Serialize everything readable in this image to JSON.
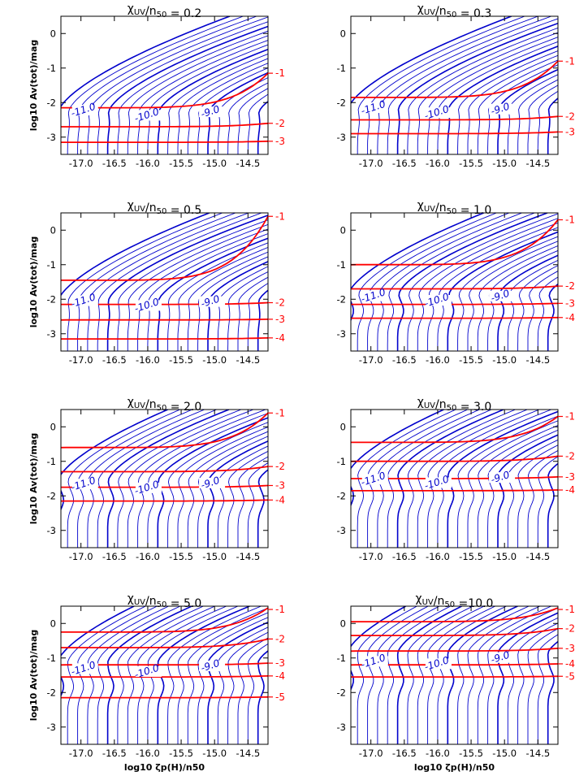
{
  "colors": {
    "contour": "#0000cc",
    "red": "#ff0000",
    "axis": "#000000"
  },
  "chart_data": [
    {
      "type": "line",
      "title_prefix": "χ",
      "title_sub": "UV",
      "title_mid": "/n",
      "title_sub2": "50",
      "title_value": " = 0.2",
      "xlabel_show": false,
      "ylabel_show": true,
      "xlim": [
        -17.3,
        -14.2
      ],
      "ylim": [
        -3.5,
        0.5
      ],
      "xticks": [
        "-17.0",
        "-16.5",
        "-16.0",
        "-15.5",
        "-15.0",
        "-14.5"
      ],
      "yticks": [
        "0",
        "-1",
        "-2",
        "-3"
      ],
      "red_curves": [
        {
          "label": "-1",
          "y_left": -2.15,
          "y_right": -1.15
        },
        {
          "label": "-2",
          "y_left": -2.7,
          "y_right": -2.6
        },
        {
          "label": "-3",
          "y_left": -3.15,
          "y_right": -3.12
        }
      ],
      "contour_labels": [
        "-11.0",
        "-10.0",
        "-9.0"
      ],
      "shift": 0.0
    },
    {
      "type": "line",
      "title_prefix": "χ",
      "title_sub": "UV",
      "title_mid": "/n",
      "title_sub2": "50",
      "title_value": " = 0.3",
      "xlabel_show": false,
      "ylabel_show": false,
      "xlim": [
        -17.3,
        -14.2
      ],
      "ylim": [
        -3.5,
        0.5
      ],
      "xticks": [
        "-17.0",
        "-16.5",
        "-16.0",
        "-15.5",
        "-15.0",
        "-14.5"
      ],
      "yticks": [
        "0",
        "-1",
        "-2",
        "-3"
      ],
      "red_curves": [
        {
          "label": "-1",
          "y_left": -1.85,
          "y_right": -0.8
        },
        {
          "label": "-2",
          "y_left": -2.5,
          "y_right": -2.4
        },
        {
          "label": "-3",
          "y_left": -2.9,
          "y_right": -2.85
        }
      ],
      "contour_labels": [
        "-11.0",
        "-10.0",
        "-9.0"
      ],
      "shift": 0.1
    },
    {
      "type": "line",
      "title_prefix": "χ",
      "title_sub": "UV",
      "title_mid": "/n",
      "title_sub2": "50",
      "title_value": " = 0.5",
      "xlabel_show": false,
      "ylabel_show": true,
      "xlim": [
        -17.3,
        -14.2
      ],
      "ylim": [
        -3.5,
        0.5
      ],
      "xticks": [
        "-17.0",
        "-16.5",
        "-16.0",
        "-15.5",
        "-15.0",
        "-14.5"
      ],
      "yticks": [
        "0",
        "-1",
        "-2",
        "-3"
      ],
      "red_curves": [
        {
          "label": "-1",
          "y_left": -1.45,
          "y_right": 0.4
        },
        {
          "label": "-2",
          "y_left": -2.15,
          "y_right": -2.1
        },
        {
          "label": "-3",
          "y_left": -2.6,
          "y_right": -2.58
        },
        {
          "label": "-4",
          "y_left": -3.15,
          "y_right": -3.12
        }
      ],
      "contour_labels": [
        "-11.0",
        "-10.0",
        "-9.0"
      ],
      "shift": 0.25
    },
    {
      "type": "line",
      "title_prefix": "χ",
      "title_sub": "UV",
      "title_mid": "/n",
      "title_sub2": "50",
      "title_value": " = 1.0",
      "xlabel_show": false,
      "ylabel_show": false,
      "xlim": [
        -17.3,
        -14.2
      ],
      "ylim": [
        -3.5,
        0.5
      ],
      "xticks": [
        "-17.0",
        "-16.5",
        "-16.0",
        "-15.5",
        "-15.0",
        "-14.5"
      ],
      "yticks": [
        "0",
        "-1",
        "-2",
        "-3"
      ],
      "red_curves": [
        {
          "label": "-1",
          "y_left": -1.0,
          "y_right": 0.3
        },
        {
          "label": "-2",
          "y_left": -1.7,
          "y_right": -1.62
        },
        {
          "label": "-3",
          "y_left": -2.15,
          "y_right": -2.12
        },
        {
          "label": "-4",
          "y_left": -2.55,
          "y_right": -2.53
        }
      ],
      "contour_labels": [
        "-11.0",
        "-10.0",
        "-9.0"
      ],
      "shift": 0.45
    },
    {
      "type": "line",
      "title_prefix": "χ",
      "title_sub": "UV",
      "title_mid": "/n",
      "title_sub2": "50",
      "title_value": " = 2.0",
      "xlabel_show": false,
      "ylabel_show": true,
      "xlim": [
        -17.3,
        -14.2
      ],
      "ylim": [
        -3.5,
        0.5
      ],
      "xticks": [
        "-17.0",
        "-16.5",
        "-16.0",
        "-15.5",
        "-15.0",
        "-14.5"
      ],
      "yticks": [
        "0",
        "-1",
        "-2",
        "-3"
      ],
      "red_curves": [
        {
          "label": "-1",
          "y_left": -0.6,
          "y_right": 0.4
        },
        {
          "label": "-2",
          "y_left": -1.3,
          "y_right": -1.15
        },
        {
          "label": "-3",
          "y_left": -1.75,
          "y_right": -1.7
        },
        {
          "label": "-4",
          "y_left": -2.15,
          "y_right": -2.12
        }
      ],
      "contour_labels": [
        "-11.0",
        "-10.0",
        "-9.0"
      ],
      "shift": 0.8
    },
    {
      "type": "line",
      "title_prefix": "χ",
      "title_sub": "UV",
      "title_mid": "/n",
      "title_sub2": "50",
      "title_value": " = 3.0",
      "xlabel_show": false,
      "ylabel_show": false,
      "xlim": [
        -17.3,
        -14.2
      ],
      "ylim": [
        -3.5,
        0.5
      ],
      "xticks": [
        "-17.0",
        "-16.5",
        "-16.0",
        "-15.5",
        "-15.0",
        "-14.5"
      ],
      "yticks": [
        "0",
        "-1",
        "-2",
        "-3"
      ],
      "red_curves": [
        {
          "label": "-1",
          "y_left": -0.45,
          "y_right": 0.3
        },
        {
          "label": "-2",
          "y_left": -1.0,
          "y_right": -0.85
        },
        {
          "label": "-3",
          "y_left": -1.5,
          "y_right": -1.45
        },
        {
          "label": "-4",
          "y_left": -1.85,
          "y_right": -1.83
        }
      ],
      "contour_labels": [
        "-11.0",
        "-10.0",
        "-9.0"
      ],
      "shift": 1.0
    },
    {
      "type": "line",
      "title_prefix": "χ",
      "title_sub": "UV",
      "title_mid": "/n",
      "title_sub2": "50",
      "title_value": " = 5.0",
      "xlabel": "log10 ζp(H)/n50",
      "xlabel_show": true,
      "ylabel_show": true,
      "xlim": [
        -17.3,
        -14.2
      ],
      "ylim": [
        -3.5,
        0.5
      ],
      "xticks": [
        "-17.0",
        "-16.5",
        "-16.0",
        "-15.5",
        "-15.0",
        "-14.5"
      ],
      "yticks": [
        "0",
        "-1",
        "-2",
        "-3"
      ],
      "red_curves": [
        {
          "label": "-1",
          "y_left": -0.25,
          "y_right": 0.45
        },
        {
          "label": "-2",
          "y_left": -0.7,
          "y_right": -0.45
        },
        {
          "label": "-3",
          "y_left": -1.2,
          "y_right": -1.15
        },
        {
          "label": "-4",
          "y_left": -1.55,
          "y_right": -1.52
        },
        {
          "label": "-5",
          "y_left": -2.15,
          "y_right": -2.13
        }
      ],
      "contour_labels": [
        "-11.0",
        "-10.0",
        "-9.0"
      ],
      "shift": 1.3
    },
    {
      "type": "line",
      "title_prefix": "χ",
      "title_sub": "UV",
      "title_mid": "/n",
      "title_sub2": "50",
      "title_value": " =10.0",
      "xlabel": "log10 ζp(H)/n50",
      "xlabel_show": true,
      "ylabel_show": false,
      "xlim": [
        -17.3,
        -14.2
      ],
      "ylim": [
        -3.5,
        0.5
      ],
      "xticks": [
        "-17.0",
        "-16.5",
        "-16.0",
        "-15.5",
        "-15.0",
        "-14.5"
      ],
      "yticks": [
        "0",
        "-1",
        "-2",
        "-3"
      ],
      "red_curves": [
        {
          "label": "-1",
          "y_left": 0.05,
          "y_right": 0.45
        },
        {
          "label": "-2",
          "y_left": -0.35,
          "y_right": -0.15
        },
        {
          "label": "-3",
          "y_left": -0.8,
          "y_right": -0.72
        },
        {
          "label": "-4",
          "y_left": -1.2,
          "y_right": -1.17
        },
        {
          "label": "-5",
          "y_left": -1.55,
          "y_right": -1.53
        }
      ],
      "contour_labels": [
        "-11.0",
        "-10.0",
        "-9.0"
      ],
      "shift": 1.6
    }
  ],
  "ylabel": "log10 Av(tot)/mag"
}
